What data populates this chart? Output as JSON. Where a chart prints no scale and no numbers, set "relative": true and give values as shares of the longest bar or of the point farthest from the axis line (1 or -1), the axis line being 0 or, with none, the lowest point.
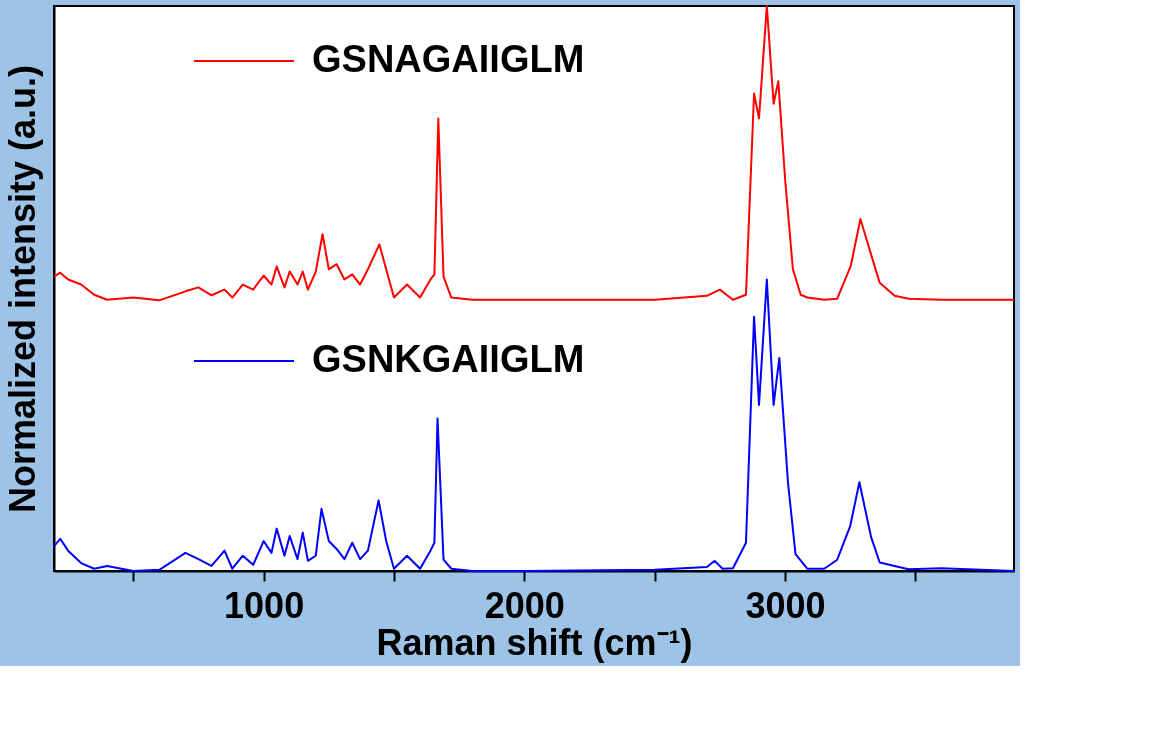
{
  "chart_data": {
    "type": "line",
    "relative": true,
    "xlabel": "Raman shift (cm⁻¹)",
    "ylabel": "Normalized intensity (a.u.)",
    "xlim": [
      196,
      3878
    ],
    "xticks": [
      {
        "value": 500,
        "label": null
      },
      1000,
      {
        "value": 1500,
        "label": null
      },
      2000,
      {
        "value": 2500,
        "label": null
      },
      3000,
      {
        "value": 3500,
        "label": null
      }
    ],
    "legend": "top left",
    "grid": false,
    "line_style": "solid",
    "series": [
      {
        "name": "GSNAGAIIGLM",
        "color": "#ff0000",
        "x": [
          196,
          220,
          250,
          300,
          350,
          400,
          500,
          600,
          700,
          750,
          800,
          850,
          880,
          920,
          960,
          1000,
          1030,
          1050,
          1080,
          1100,
          1130,
          1150,
          1170,
          1200,
          1226,
          1250,
          1280,
          1310,
          1340,
          1370,
          1400,
          1444,
          1470,
          1500,
          1550,
          1600,
          1640,
          1655,
          1670,
          1690,
          1720,
          1800,
          2000,
          2500,
          2700,
          2750,
          2800,
          2850,
          2881,
          2900,
          2930,
          2956,
          2974,
          3000,
          3030,
          3060,
          3085,
          3150,
          3200,
          3252,
          3289,
          3330,
          3363,
          3420,
          3474,
          3600,
          3878
        ],
        "values": [
          0.521,
          0.528,
          0.516,
          0.507,
          0.489,
          0.48,
          0.484,
          0.479,
          0.495,
          0.502,
          0.488,
          0.498,
          0.484,
          0.507,
          0.498,
          0.523,
          0.507,
          0.539,
          0.502,
          0.53,
          0.507,
          0.53,
          0.498,
          0.53,
          0.596,
          0.534,
          0.543,
          0.516,
          0.525,
          0.507,
          0.534,
          0.578,
          0.534,
          0.484,
          0.507,
          0.484,
          0.516,
          0.525,
          0.801,
          0.521,
          0.484,
          0.48,
          0.48,
          0.48,
          0.487,
          0.498,
          0.48,
          0.489,
          0.845,
          0.801,
          1.0,
          0.827,
          0.867,
          0.694,
          0.534,
          0.489,
          0.484,
          0.48,
          0.482,
          0.54,
          0.623,
          0.56,
          0.51,
          0.487,
          0.482,
          0.48,
          0.48
        ]
      },
      {
        "name": "GSNKGAIIGLM",
        "color": "#0000ff",
        "x": [
          196,
          220,
          250,
          300,
          350,
          400,
          500,
          600,
          700,
          750,
          800,
          850,
          880,
          920,
          960,
          1000,
          1030,
          1050,
          1080,
          1100,
          1130,
          1150,
          1170,
          1200,
          1222,
          1250,
          1280,
          1310,
          1340,
          1370,
          1400,
          1441,
          1470,
          1500,
          1550,
          1600,
          1640,
          1655,
          1667,
          1690,
          1720,
          1800,
          2000,
          2500,
          2700,
          2730,
          2760,
          2800,
          2850,
          2881,
          2900,
          2930,
          2956,
          2978,
          3011,
          3040,
          3085,
          3150,
          3200,
          3250,
          3285,
          3330,
          3363,
          3420,
          3474,
          3600,
          3878
        ],
        "values": [
          0.044,
          0.057,
          0.036,
          0.014,
          0.004,
          0.009,
          0.0,
          0.002,
          0.032,
          0.021,
          0.009,
          0.036,
          0.004,
          0.027,
          0.011,
          0.053,
          0.032,
          0.075,
          0.027,
          0.062,
          0.021,
          0.068,
          0.018,
          0.027,
          0.11,
          0.053,
          0.039,
          0.021,
          0.05,
          0.021,
          0.036,
          0.125,
          0.053,
          0.004,
          0.027,
          0.004,
          0.036,
          0.05,
          0.27,
          0.02,
          0.004,
          0.0,
          0.0,
          0.002,
          0.007,
          0.018,
          0.004,
          0.005,
          0.05,
          0.45,
          0.294,
          0.516,
          0.294,
          0.377,
          0.157,
          0.03,
          0.004,
          0.004,
          0.02,
          0.08,
          0.157,
          0.06,
          0.015,
          0.009,
          0.003,
          0.005,
          0.0
        ]
      }
    ]
  }
}
